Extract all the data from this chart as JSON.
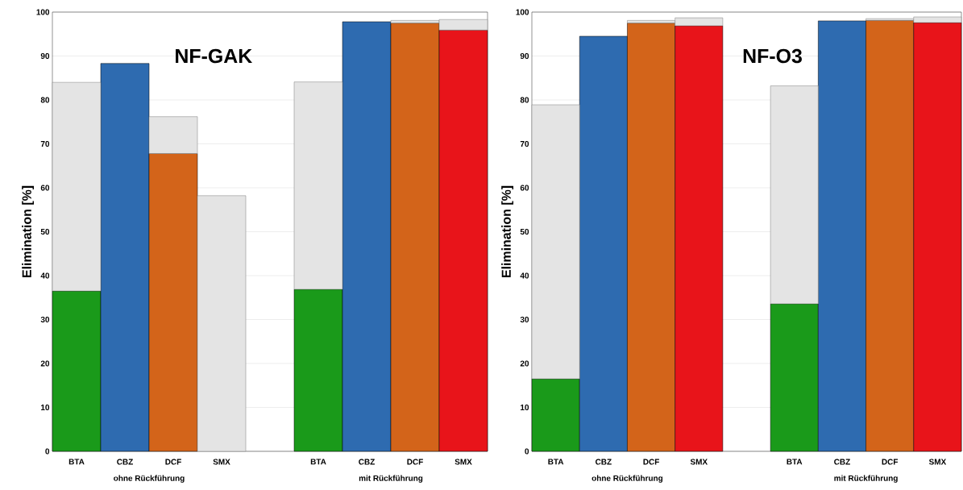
{
  "chart_data": [
    {
      "type": "bar",
      "title": "NF-GAK",
      "ylabel": "Elimination [%]",
      "stacked": true,
      "grid": "y",
      "categories": [
        "BTA",
        "CBZ",
        "DCF",
        "SMX",
        null,
        "BTA",
        "CBZ",
        "DCF",
        "SMX"
      ],
      "series": [
        {
          "colors": [
            "#1a9a1a",
            "#2e6bb0",
            "#d3641a",
            "#e8141a",
            null,
            "#1a9a1a",
            "#2e6bb0",
            "#d3641a",
            "#e8141a"
          ],
          "values": [
            36.5,
            88.3,
            67.8,
            null,
            null,
            36.9,
            97.8,
            97.5,
            95.9
          ]
        },
        {
          "color": "#e4e4e4",
          "values": [
            47.5,
            null,
            8.4,
            58.2,
            null,
            47.2,
            null,
            0.6,
            2.4
          ]
        }
      ],
      "ylim": [
        0,
        100
      ],
      "yticks": [
        0,
        10,
        20,
        30,
        40,
        50,
        60,
        70,
        80,
        90,
        100
      ],
      "annotations": [
        "ohne Rückführung",
        "mit Rückführung"
      ]
    },
    {
      "type": "bar",
      "title": "NF-O3",
      "ylabel": "Elimination [%]",
      "stacked": true,
      "grid": "y",
      "categories": [
        "BTA",
        "CBZ",
        "DCF",
        "SMX",
        null,
        "BTA",
        "CBZ",
        "DCF",
        "SMX"
      ],
      "series": [
        {
          "colors": [
            "#1a9a1a",
            "#2e6bb0",
            "#d3641a",
            "#e8141a",
            null,
            "#1a9a1a",
            "#2e6bb0",
            "#d3641a",
            "#e8141a"
          ],
          "values": [
            16.5,
            94.5,
            97.5,
            96.9,
            null,
            33.6,
            98.0,
            98.1,
            97.6
          ]
        },
        {
          "color": "#e4e4e4",
          "values": [
            62.4,
            null,
            0.6,
            1.8,
            null,
            49.6,
            null,
            0.4,
            1.3
          ]
        }
      ],
      "ylim": [
        0,
        100
      ],
      "yticks": [
        0,
        10,
        20,
        30,
        40,
        50,
        60,
        70,
        80,
        90,
        100
      ],
      "annotations": [
        "ohne Rückführung",
        "mit Rückführung"
      ]
    }
  ]
}
